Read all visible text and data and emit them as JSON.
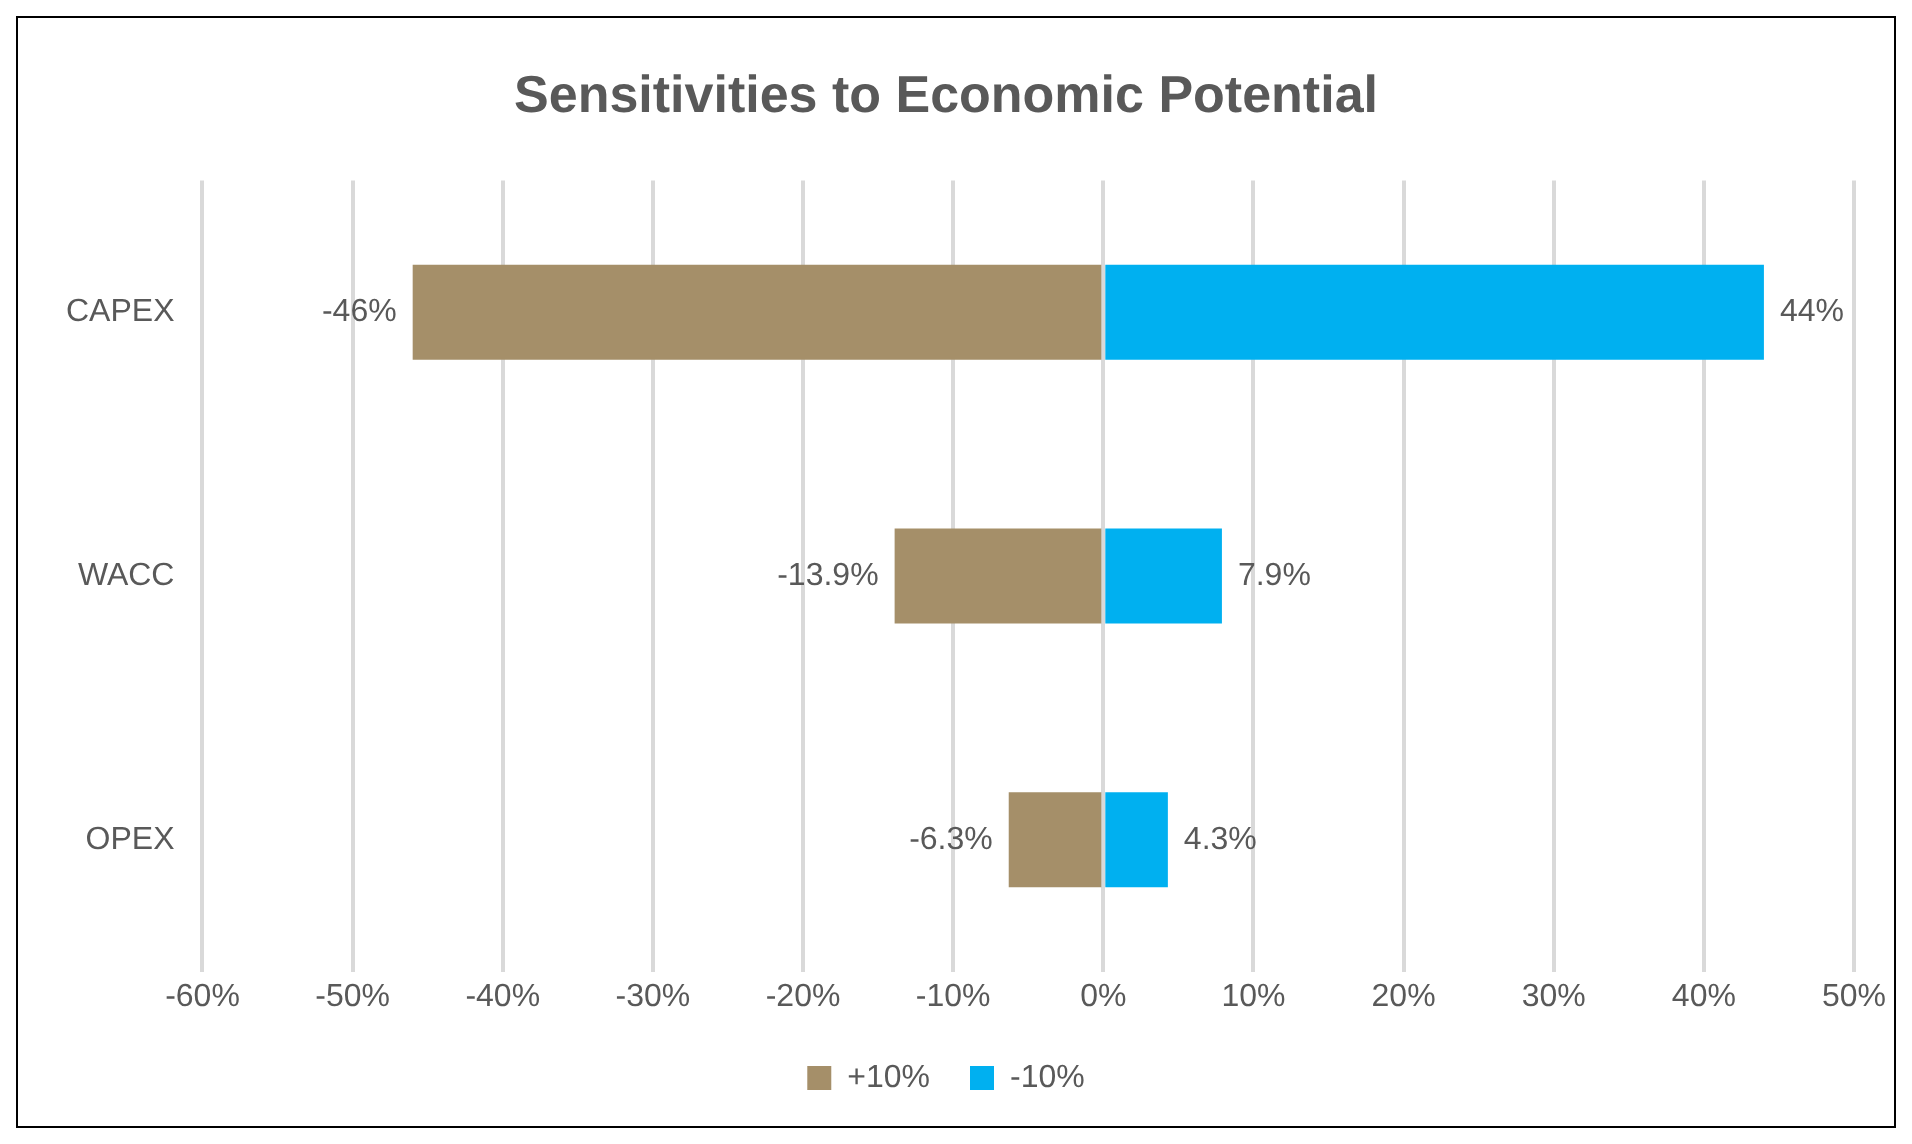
{
  "chart_data": {
    "type": "bar",
    "orientation": "horizontal",
    "stacked": true,
    "title": "Sensitivities to Economic Potential",
    "categories": [
      "CAPEX",
      "WACC",
      "OPEX"
    ],
    "series": [
      {
        "name": "+10%",
        "color": "#a58f69",
        "values": [
          -46,
          -13.9,
          -6.3
        ],
        "value_labels": [
          "-46%",
          "-13.9%",
          "-6.3%"
        ]
      },
      {
        "name": "-10%",
        "color": "#00b0f0",
        "values": [
          44,
          7.9,
          4.3
        ],
        "value_labels": [
          "44%",
          "7.9%",
          "4.3%"
        ]
      }
    ],
    "xlim": [
      -60,
      50
    ],
    "xticks": [
      {
        "value": -60,
        "label": "-60%"
      },
      {
        "value": -50,
        "label": "-50%"
      },
      {
        "value": -40,
        "label": "-40%"
      },
      {
        "value": -30,
        "label": "-30%"
      },
      {
        "value": -20,
        "label": "-20%"
      },
      {
        "value": -10,
        "label": "-10%"
      },
      {
        "value": 0,
        "label": "0%"
      },
      {
        "value": 10,
        "label": "10%"
      },
      {
        "value": 20,
        "label": "20%"
      },
      {
        "value": 30,
        "label": "30%"
      },
      {
        "value": 40,
        "label": "40%"
      },
      {
        "value": 50,
        "label": "50%"
      }
    ],
    "grid": "x",
    "legend": "bottom"
  }
}
